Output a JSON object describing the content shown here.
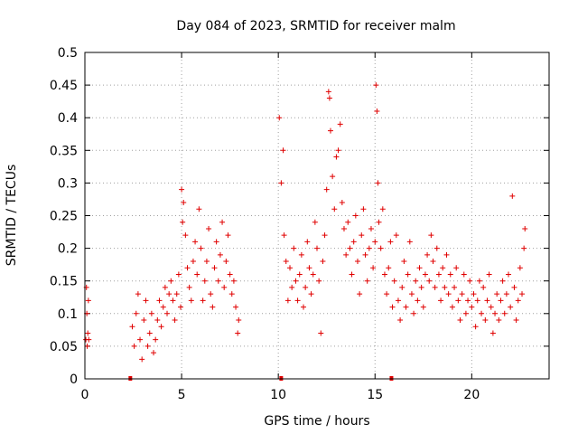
{
  "chart_data": {
    "type": "scatter",
    "title": "Day 084 of 2023, SRMTID for receiver malm",
    "xlabel": "GPS time / hours",
    "ylabel": "SRMTID / TECUs",
    "xlim": [
      0,
      24
    ],
    "ylim": [
      0,
      0.5
    ],
    "x_ticks": [
      "0",
      "5",
      "10",
      "15",
      "20"
    ],
    "x_tick_values": [
      0,
      5,
      10,
      15,
      20
    ],
    "y_ticks": [
      "0",
      "0.05",
      "0.1",
      "0.15",
      "0.2",
      "0.25",
      "0.3",
      "0.35",
      "0.4",
      "0.45",
      "0.5"
    ],
    "y_tick_values": [
      0,
      0.05,
      0.1,
      0.15,
      0.2,
      0.25,
      0.3,
      0.35,
      0.4,
      0.45,
      0.5
    ],
    "grid": true,
    "marker": "+",
    "color": "#e00000",
    "series": [
      {
        "name": "SRMTID",
        "points": [
          [
            0.05,
            0.06
          ],
          [
            0.08,
            0.14
          ],
          [
            0.1,
            0.1
          ],
          [
            0.12,
            0.05
          ],
          [
            0.15,
            0.07
          ],
          [
            0.18,
            0.12
          ],
          [
            0.2,
            0.06
          ],
          [
            2.45,
            0.08
          ],
          [
            2.55,
            0.05
          ],
          [
            2.65,
            0.1
          ],
          [
            2.75,
            0.13
          ],
          [
            2.85,
            0.06
          ],
          [
            2.95,
            0.03
          ],
          [
            3.05,
            0.09
          ],
          [
            3.15,
            0.12
          ],
          [
            3.25,
            0.05
          ],
          [
            3.35,
            0.07
          ],
          [
            3.45,
            0.1
          ],
          [
            3.55,
            0.04
          ],
          [
            3.65,
            0.06
          ],
          [
            3.75,
            0.09
          ],
          [
            3.85,
            0.12
          ],
          [
            3.95,
            0.08
          ],
          [
            4.05,
            0.11
          ],
          [
            4.15,
            0.14
          ],
          [
            4.25,
            0.1
          ],
          [
            4.35,
            0.13
          ],
          [
            4.45,
            0.15
          ],
          [
            4.55,
            0.12
          ],
          [
            4.65,
            0.09
          ],
          [
            4.75,
            0.13
          ],
          [
            4.85,
            0.16
          ],
          [
            4.95,
            0.11
          ],
          [
            5.0,
            0.29
          ],
          [
            5.05,
            0.24
          ],
          [
            5.1,
            0.27
          ],
          [
            5.2,
            0.22
          ],
          [
            5.3,
            0.17
          ],
          [
            5.4,
            0.14
          ],
          [
            5.5,
            0.12
          ],
          [
            5.6,
            0.18
          ],
          [
            5.7,
            0.21
          ],
          [
            5.8,
            0.16
          ],
          [
            5.9,
            0.26
          ],
          [
            6.0,
            0.2
          ],
          [
            6.1,
            0.12
          ],
          [
            6.2,
            0.15
          ],
          [
            6.3,
            0.18
          ],
          [
            6.4,
            0.23
          ],
          [
            6.5,
            0.13
          ],
          [
            6.6,
            0.11
          ],
          [
            6.7,
            0.17
          ],
          [
            6.8,
            0.21
          ],
          [
            6.9,
            0.15
          ],
          [
            7.0,
            0.19
          ],
          [
            7.1,
            0.24
          ],
          [
            7.2,
            0.14
          ],
          [
            7.3,
            0.18
          ],
          [
            7.4,
            0.22
          ],
          [
            7.5,
            0.16
          ],
          [
            7.6,
            0.13
          ],
          [
            7.7,
            0.15
          ],
          [
            7.8,
            0.11
          ],
          [
            7.9,
            0.07
          ],
          [
            7.95,
            0.09
          ],
          [
            10.05,
            0.4
          ],
          [
            10.15,
            0.3
          ],
          [
            10.25,
            0.35
          ],
          [
            10.3,
            0.22
          ],
          [
            10.4,
            0.18
          ],
          [
            10.5,
            0.12
          ],
          [
            10.6,
            0.17
          ],
          [
            10.7,
            0.14
          ],
          [
            10.8,
            0.2
          ],
          [
            10.9,
            0.15
          ],
          [
            11.0,
            0.12
          ],
          [
            11.1,
            0.16
          ],
          [
            11.2,
            0.19
          ],
          [
            11.3,
            0.11
          ],
          [
            11.4,
            0.14
          ],
          [
            11.5,
            0.21
          ],
          [
            11.6,
            0.17
          ],
          [
            11.7,
            0.13
          ],
          [
            11.8,
            0.16
          ],
          [
            11.9,
            0.24
          ],
          [
            12.0,
            0.2
          ],
          [
            12.1,
            0.15
          ],
          [
            12.2,
            0.07
          ],
          [
            12.3,
            0.18
          ],
          [
            12.4,
            0.22
          ],
          [
            12.5,
            0.29
          ],
          [
            12.6,
            0.44
          ],
          [
            12.65,
            0.43
          ],
          [
            12.7,
            0.38
          ],
          [
            12.8,
            0.31
          ],
          [
            12.9,
            0.26
          ],
          [
            13.0,
            0.34
          ],
          [
            13.1,
            0.35
          ],
          [
            13.2,
            0.39
          ],
          [
            13.3,
            0.27
          ],
          [
            13.4,
            0.23
          ],
          [
            13.5,
            0.19
          ],
          [
            13.6,
            0.24
          ],
          [
            13.7,
            0.2
          ],
          [
            13.8,
            0.16
          ],
          [
            13.9,
            0.21
          ],
          [
            14.0,
            0.25
          ],
          [
            14.1,
            0.18
          ],
          [
            14.2,
            0.13
          ],
          [
            14.3,
            0.22
          ],
          [
            14.4,
            0.26
          ],
          [
            14.5,
            0.19
          ],
          [
            14.6,
            0.15
          ],
          [
            14.7,
            0.2
          ],
          [
            14.8,
            0.23
          ],
          [
            14.9,
            0.17
          ],
          [
            15.0,
            0.21
          ],
          [
            15.05,
            0.45
          ],
          [
            15.1,
            0.41
          ],
          [
            15.15,
            0.3
          ],
          [
            15.2,
            0.24
          ],
          [
            15.3,
            0.2
          ],
          [
            15.4,
            0.26
          ],
          [
            15.5,
            0.16
          ],
          [
            15.6,
            0.13
          ],
          [
            15.7,
            0.17
          ],
          [
            15.8,
            0.21
          ],
          [
            15.9,
            0.11
          ],
          [
            16.0,
            0.15
          ],
          [
            16.1,
            0.22
          ],
          [
            16.2,
            0.12
          ],
          [
            16.3,
            0.09
          ],
          [
            16.4,
            0.14
          ],
          [
            16.5,
            0.18
          ],
          [
            16.6,
            0.11
          ],
          [
            16.7,
            0.16
          ],
          [
            16.8,
            0.21
          ],
          [
            16.9,
            0.13
          ],
          [
            17.0,
            0.1
          ],
          [
            17.1,
            0.15
          ],
          [
            17.2,
            0.12
          ],
          [
            17.3,
            0.17
          ],
          [
            17.4,
            0.14
          ],
          [
            17.5,
            0.11
          ],
          [
            17.6,
            0.16
          ],
          [
            17.7,
            0.19
          ],
          [
            17.8,
            0.15
          ],
          [
            17.9,
            0.22
          ],
          [
            18.0,
            0.18
          ],
          [
            18.1,
            0.14
          ],
          [
            18.2,
            0.2
          ],
          [
            18.3,
            0.16
          ],
          [
            18.4,
            0.12
          ],
          [
            18.5,
            0.17
          ],
          [
            18.6,
            0.14
          ],
          [
            18.7,
            0.19
          ],
          [
            18.8,
            0.13
          ],
          [
            18.9,
            0.16
          ],
          [
            19.0,
            0.11
          ],
          [
            19.1,
            0.14
          ],
          [
            19.2,
            0.17
          ],
          [
            19.3,
            0.12
          ],
          [
            19.4,
            0.09
          ],
          [
            19.5,
            0.13
          ],
          [
            19.6,
            0.16
          ],
          [
            19.7,
            0.1
          ],
          [
            19.8,
            0.12
          ],
          [
            19.9,
            0.15
          ],
          [
            20.0,
            0.11
          ],
          [
            20.1,
            0.13
          ],
          [
            20.2,
            0.08
          ],
          [
            20.3,
            0.12
          ],
          [
            20.4,
            0.15
          ],
          [
            20.5,
            0.1
          ],
          [
            20.6,
            0.14
          ],
          [
            20.7,
            0.09
          ],
          [
            20.8,
            0.12
          ],
          [
            20.9,
            0.16
          ],
          [
            21.0,
            0.11
          ],
          [
            21.1,
            0.07
          ],
          [
            21.2,
            0.1
          ],
          [
            21.3,
            0.13
          ],
          [
            21.4,
            0.09
          ],
          [
            21.5,
            0.12
          ],
          [
            21.6,
            0.15
          ],
          [
            21.7,
            0.1
          ],
          [
            21.8,
            0.13
          ],
          [
            21.9,
            0.16
          ],
          [
            22.0,
            0.11
          ],
          [
            22.1,
            0.28
          ],
          [
            22.2,
            0.14
          ],
          [
            22.3,
            0.09
          ],
          [
            22.4,
            0.12
          ],
          [
            22.5,
            0.17
          ],
          [
            22.6,
            0.13
          ],
          [
            22.7,
            0.2
          ],
          [
            22.75,
            0.23
          ]
        ]
      }
    ],
    "gap_markers": [
      2.35,
      10.15,
      15.85
    ]
  }
}
